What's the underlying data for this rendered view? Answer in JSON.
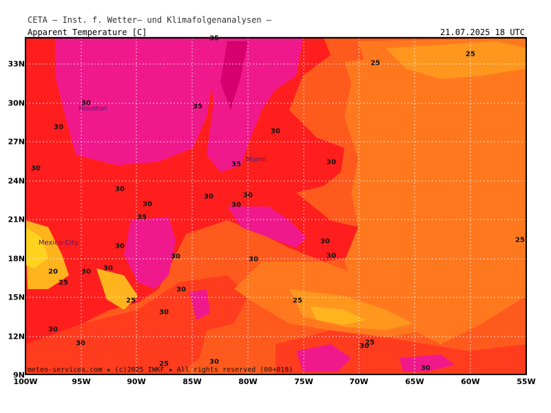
{
  "header": {
    "agency": "CETA — Inst. f. Wetter— und Klimafolgenanalysen —",
    "parameter": "Apparent Temperature [C]",
    "valid_time": "21.07.2025 18 UTC"
  },
  "lat_ticks": [
    "33N",
    "30N",
    "27N",
    "24N",
    "21N",
    "18N",
    "15N",
    "12N",
    "9N"
  ],
  "lon_ticks": [
    "100W",
    "95W",
    "90W",
    "85W",
    "80W",
    "75W",
    "70W",
    "65W",
    "60W",
    "55W"
  ],
  "credit": "meteo-services.com ★ (c)2025 IWKF ★ All rights reserved (00+018)",
  "cities": [
    "Houston",
    "Miami",
    "Mexico-City"
  ],
  "contour_labels": [
    "35",
    "25",
    "25",
    "30",
    "35",
    "30",
    "30",
    "35",
    "30",
    "30",
    "30",
    "30",
    "30",
    "30",
    "35",
    "30",
    "30",
    "30",
    "30",
    "30",
    "25",
    "20",
    "25",
    "30",
    "25",
    "30",
    "30",
    "30",
    "25",
    "30",
    "30",
    "30",
    "25",
    "30",
    "25",
    "30",
    "30"
  ],
  "colors": {
    "pink": "#f0198c",
    "magenta": "#d6006e",
    "red": "#ff1e1e",
    "red_orange": "#ff3c1e",
    "orange_red": "#ff5a1e",
    "orange": "#ff781e",
    "light_orange": "#ff961e",
    "amber": "#ffb41e",
    "yellow": "#ffd21e"
  }
}
